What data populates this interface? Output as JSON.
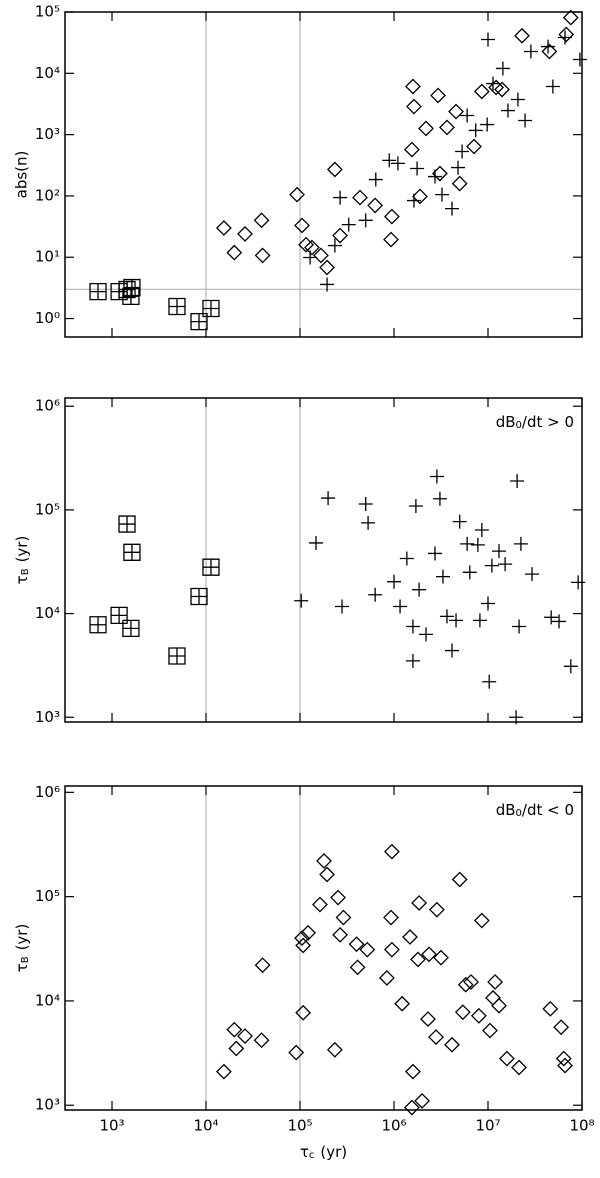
{
  "chart_data": [
    {
      "type": "scatter",
      "xscale": "log",
      "yscale": "log",
      "xlim": [
        316.2,
        100000000
      ],
      "ylim": [
        0.5,
        100000
      ],
      "xticks": [
        1000,
        10000,
        100000,
        1000000,
        10000000,
        100000000
      ],
      "yticks": [
        {
          "value": 1,
          "label": "10⁰"
        },
        {
          "value": 10,
          "label": "10¹"
        },
        {
          "value": 100,
          "label": "10²"
        },
        {
          "value": 1000,
          "label": "10³"
        },
        {
          "value": 10000,
          "label": "10⁴"
        },
        {
          "value": 100000,
          "label": "10⁵"
        }
      ],
      "ylabel": "abs(n)",
      "vlines": [
        10000,
        100000
      ],
      "hlines": [
        3
      ],
      "refline_color": "#aaaaaa",
      "series": [
        {
          "marker": "boxplus",
          "color": "#000000",
          "x": [
            710,
            1190,
            1445,
            1630,
            1590,
            4910,
            8430,
            11300
          ],
          "values": [
            2.75,
            2.75,
            2.97,
            3.2,
            2.3,
            1.57,
            0.89,
            1.46
          ]
        },
        {
          "marker": "plus",
          "color": "#000000",
          "x": [
            128000,
            194000,
            235000,
            267000,
            330000,
            500000,
            640000,
            890000,
            1100000,
            1630000,
            1760000,
            2730000,
            3240000,
            4140000,
            4800000,
            5300000,
            6000000,
            7400000,
            9800000,
            11300000,
            14400000,
            16300000,
            20800000,
            24800000,
            28600000,
            43500000,
            49000000,
            66000000,
            95000000,
            10000000
          ],
          "values": [
            9.9,
            3.6,
            15.5,
            94,
            34,
            40,
            185,
            380,
            340,
            84,
            280,
            207,
            105,
            62,
            290,
            530,
            2050,
            1170,
            1460,
            6800,
            12000,
            2470,
            3740,
            1700,
            22700,
            27300,
            6100,
            38400,
            16800,
            35600
          ]
        },
        {
          "marker": "diamond",
          "color": "#000000",
          "x": [
            15500,
            20000,
            26000,
            39000,
            40000,
            93000,
            105000,
            116000,
            134000,
            167000,
            194000,
            235000,
            267000,
            435000,
            630000,
            930000,
            950000,
            1550000,
            1590000,
            1630000,
            1890000,
            2190000,
            2940000,
            3080000,
            3660000,
            4570000,
            5000000,
            7100000,
            8600000,
            12200000,
            14100000,
            23000000,
            45000000,
            68000000,
            76000000
          ],
          "values": [
            30,
            11.9,
            24,
            40,
            10.7,
            105,
            33,
            16,
            14.4,
            10.7,
            6.8,
            270,
            22.6,
            94,
            70,
            19.4,
            46,
            570,
            6100,
            2870,
            98,
            1260,
            4350,
            232,
            1310,
            2380,
            159,
            640,
            5050,
            5870,
            5440,
            41000,
            22700,
            43000,
            81000
          ]
        }
      ]
    },
    {
      "type": "scatter",
      "xscale": "log",
      "yscale": "log",
      "xlim": [
        316.2,
        100000000
      ],
      "ylim": [
        900,
        1200000
      ],
      "xticks": [
        1000,
        10000,
        100000,
        1000000,
        10000000,
        100000000
      ],
      "yticks": [
        {
          "value": 1000,
          "label": "10³"
        },
        {
          "value": 10000,
          "label": "10⁴"
        },
        {
          "value": 100000,
          "label": "10⁵"
        },
        {
          "value": 1000000,
          "label": "10⁶"
        }
      ],
      "ylabel": {
        "symbol": "τ",
        "subscript": "B",
        "unit": "(yr)"
      },
      "annotation": {
        "text": "dB",
        "subscript": "0",
        "rest": "/dt > 0"
      },
      "vlines": [
        10000,
        100000
      ],
      "refline_color": "#aaaaaa",
      "series": [
        {
          "marker": "boxplus",
          "color": "#000000",
          "x": [
            710,
            1190,
            1445,
            1630,
            1590,
            4910,
            8430,
            11300
          ],
          "values": [
            7800,
            9600,
            73000,
            39000,
            7200,
            3900,
            14600,
            28000
          ]
        },
        {
          "marker": "plus",
          "color": "#000000",
          "x": [
            103000,
            148000,
            199000,
            280000,
            500000,
            530000,
            630000,
            1000000,
            1160000,
            1370000,
            1590000,
            1710000,
            1850000,
            2190000,
            1590000,
            2730000,
            2860000,
            3080000,
            3320000,
            3660000,
            4140000,
            4570000,
            5000000,
            6000000,
            6400000,
            7800000,
            8600000,
            10300000,
            10000000,
            11000000,
            13100000,
            15200000,
            20400000,
            21400000,
            22400000,
            29400000,
            47000000,
            57000000,
            76000000,
            91000000,
            19900000,
            8200000
          ],
          "values": [
            13300,
            48000,
            130000,
            11700,
            114000,
            75000,
            15200,
            20300,
            11700,
            34000,
            7500,
            109000,
            17000,
            6300,
            3500,
            38000,
            210000,
            128000,
            22700,
            9400,
            4400,
            8600,
            77000,
            47000,
            25000,
            46000,
            64000,
            2200,
            12500,
            29000,
            40000,
            30000,
            190000,
            7500,
            47000,
            24000,
            9200,
            8400,
            3100,
            20000,
            1000,
            8600
          ]
        }
      ]
    },
    {
      "type": "scatter",
      "xscale": "log",
      "yscale": "log",
      "xlim": [
        316.2,
        100000000
      ],
      "ylim": [
        900,
        1150000
      ],
      "xticks": [
        {
          "value": 1000,
          "label": "10³"
        },
        {
          "value": 10000,
          "label": "10⁴"
        },
        {
          "value": 100000,
          "label": "10⁵"
        },
        {
          "value": 1000000,
          "label": "10⁶"
        },
        {
          "value": 10000000,
          "label": "10⁷"
        },
        {
          "value": 100000000,
          "label": "10⁸"
        }
      ],
      "yticks": [
        {
          "value": 1000,
          "label": "10³"
        },
        {
          "value": 10000,
          "label": "10⁴"
        },
        {
          "value": 100000,
          "label": "10⁵"
        },
        {
          "value": 1000000,
          "label": "10⁶"
        }
      ],
      "xlabel": {
        "symbol": "τ",
        "subscript": "c",
        "unit": "(yr)"
      },
      "ylabel": {
        "symbol": "τ",
        "subscript": "B",
        "unit": "(yr)"
      },
      "annotation": {
        "text": "dB",
        "subscript": "0",
        "rest": "/dt < 0"
      },
      "vlines": [
        10000,
        100000
      ],
      "refline_color": "#aaaaaa",
      "series": [
        {
          "marker": "diamond",
          "color": "#000000",
          "x": [
            15500,
            20000,
            21000,
            26000,
            39000,
            40000,
            91000,
            105000,
            108000,
            108000,
            122000,
            163000,
            180000,
            194000,
            235000,
            254000,
            267000,
            290000,
            400000,
            410000,
            520000,
            840000,
            930000,
            950000,
            950000,
            1220000,
            1480000,
            1590000,
            1550000,
            1990000,
            1800000,
            1850000,
            2300000,
            2360000,
            2800000,
            2860000,
            3160000,
            4140000,
            5000000,
            5400000,
            5800000,
            6600000,
            8000000,
            8600000,
            10500000,
            11300000,
            11900000,
            13100000,
            15900000,
            21400000,
            46000000,
            60000000,
            64000000,
            66000000
          ],
          "values": [
            2100,
            5300,
            3500,
            4600,
            4200,
            22000,
            3200,
            40000,
            34000,
            7700,
            45000,
            84000,
            220000,
            163000,
            3400,
            98000,
            43000,
            63000,
            35000,
            21000,
            31000,
            16600,
            63000,
            270000,
            31000,
            9400,
            41000,
            2100,
            950,
            1100,
            25000,
            87000,
            6700,
            28000,
            4500,
            75000,
            26000,
            3800,
            146000,
            7800,
            14300,
            15200,
            7200,
            59000,
            5200,
            10700,
            15200,
            9000,
            2800,
            2300,
            8400,
            5600,
            2800,
            2400
          ]
        }
      ]
    }
  ]
}
